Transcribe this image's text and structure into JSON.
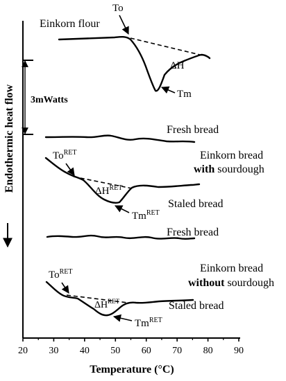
{
  "chart_data": {
    "type": "line",
    "xlabel": "Temperature (°C)",
    "ylabel": "Endothermic heat flow",
    "xlim": [
      20,
      90
    ],
    "x_ticks": [
      20,
      30,
      40,
      50,
      60,
      70,
      80,
      90
    ],
    "scale_bar": "3mWatts",
    "curves": [
      {
        "id": "flour",
        "label": "Einkorn flour",
        "x_range": [
          30,
          81
        ],
        "annotations": [
          "To",
          "ΔH",
          "Tm"
        ]
      },
      {
        "id": "with_fresh",
        "label": "Fresh bread",
        "x_range": [
          28,
          78
        ]
      },
      {
        "id": "with_staled",
        "label": "Staled bread",
        "group": "Einkorn bread with sourdough",
        "x_range": [
          28,
          78
        ],
        "annotations": [
          "ToRET",
          "ΔHRET",
          "TmRET"
        ]
      },
      {
        "id": "without_fresh",
        "label": "Fresh bread",
        "x_range": [
          29,
          78
        ]
      },
      {
        "id": "without_staled",
        "label": "Staled bread",
        "group": "Einkorn bread without sourdough",
        "x_range": [
          28,
          77
        ],
        "annotations": [
          "ToRET",
          "ΔHRET",
          "TmRET"
        ]
      }
    ]
  },
  "labels": {
    "flour": "Einkorn flour",
    "fresh1": "Fresh bread",
    "fresh2": "Fresh bread",
    "staled1": "Staled bread",
    "staled2": "Staled bread",
    "with_line1": "Einkorn bread",
    "with_line2_bold": "with",
    "with_line2_rest": " sourdough",
    "without_line1": "Einkorn bread",
    "without_line2_bold": "without",
    "without_line2_rest": " sourdough",
    "to": "To",
    "tm": "Tm",
    "dh": "ΔH",
    "to_ret_base": "To",
    "tm_ret_base": "Tm",
    "dh_ret_base": "ΔH",
    "ret_sup": "RET",
    "scale_bar": "3mWatts",
    "ylabel": "Endothermic heat flow",
    "xlabel": "Temperature (°C)"
  }
}
